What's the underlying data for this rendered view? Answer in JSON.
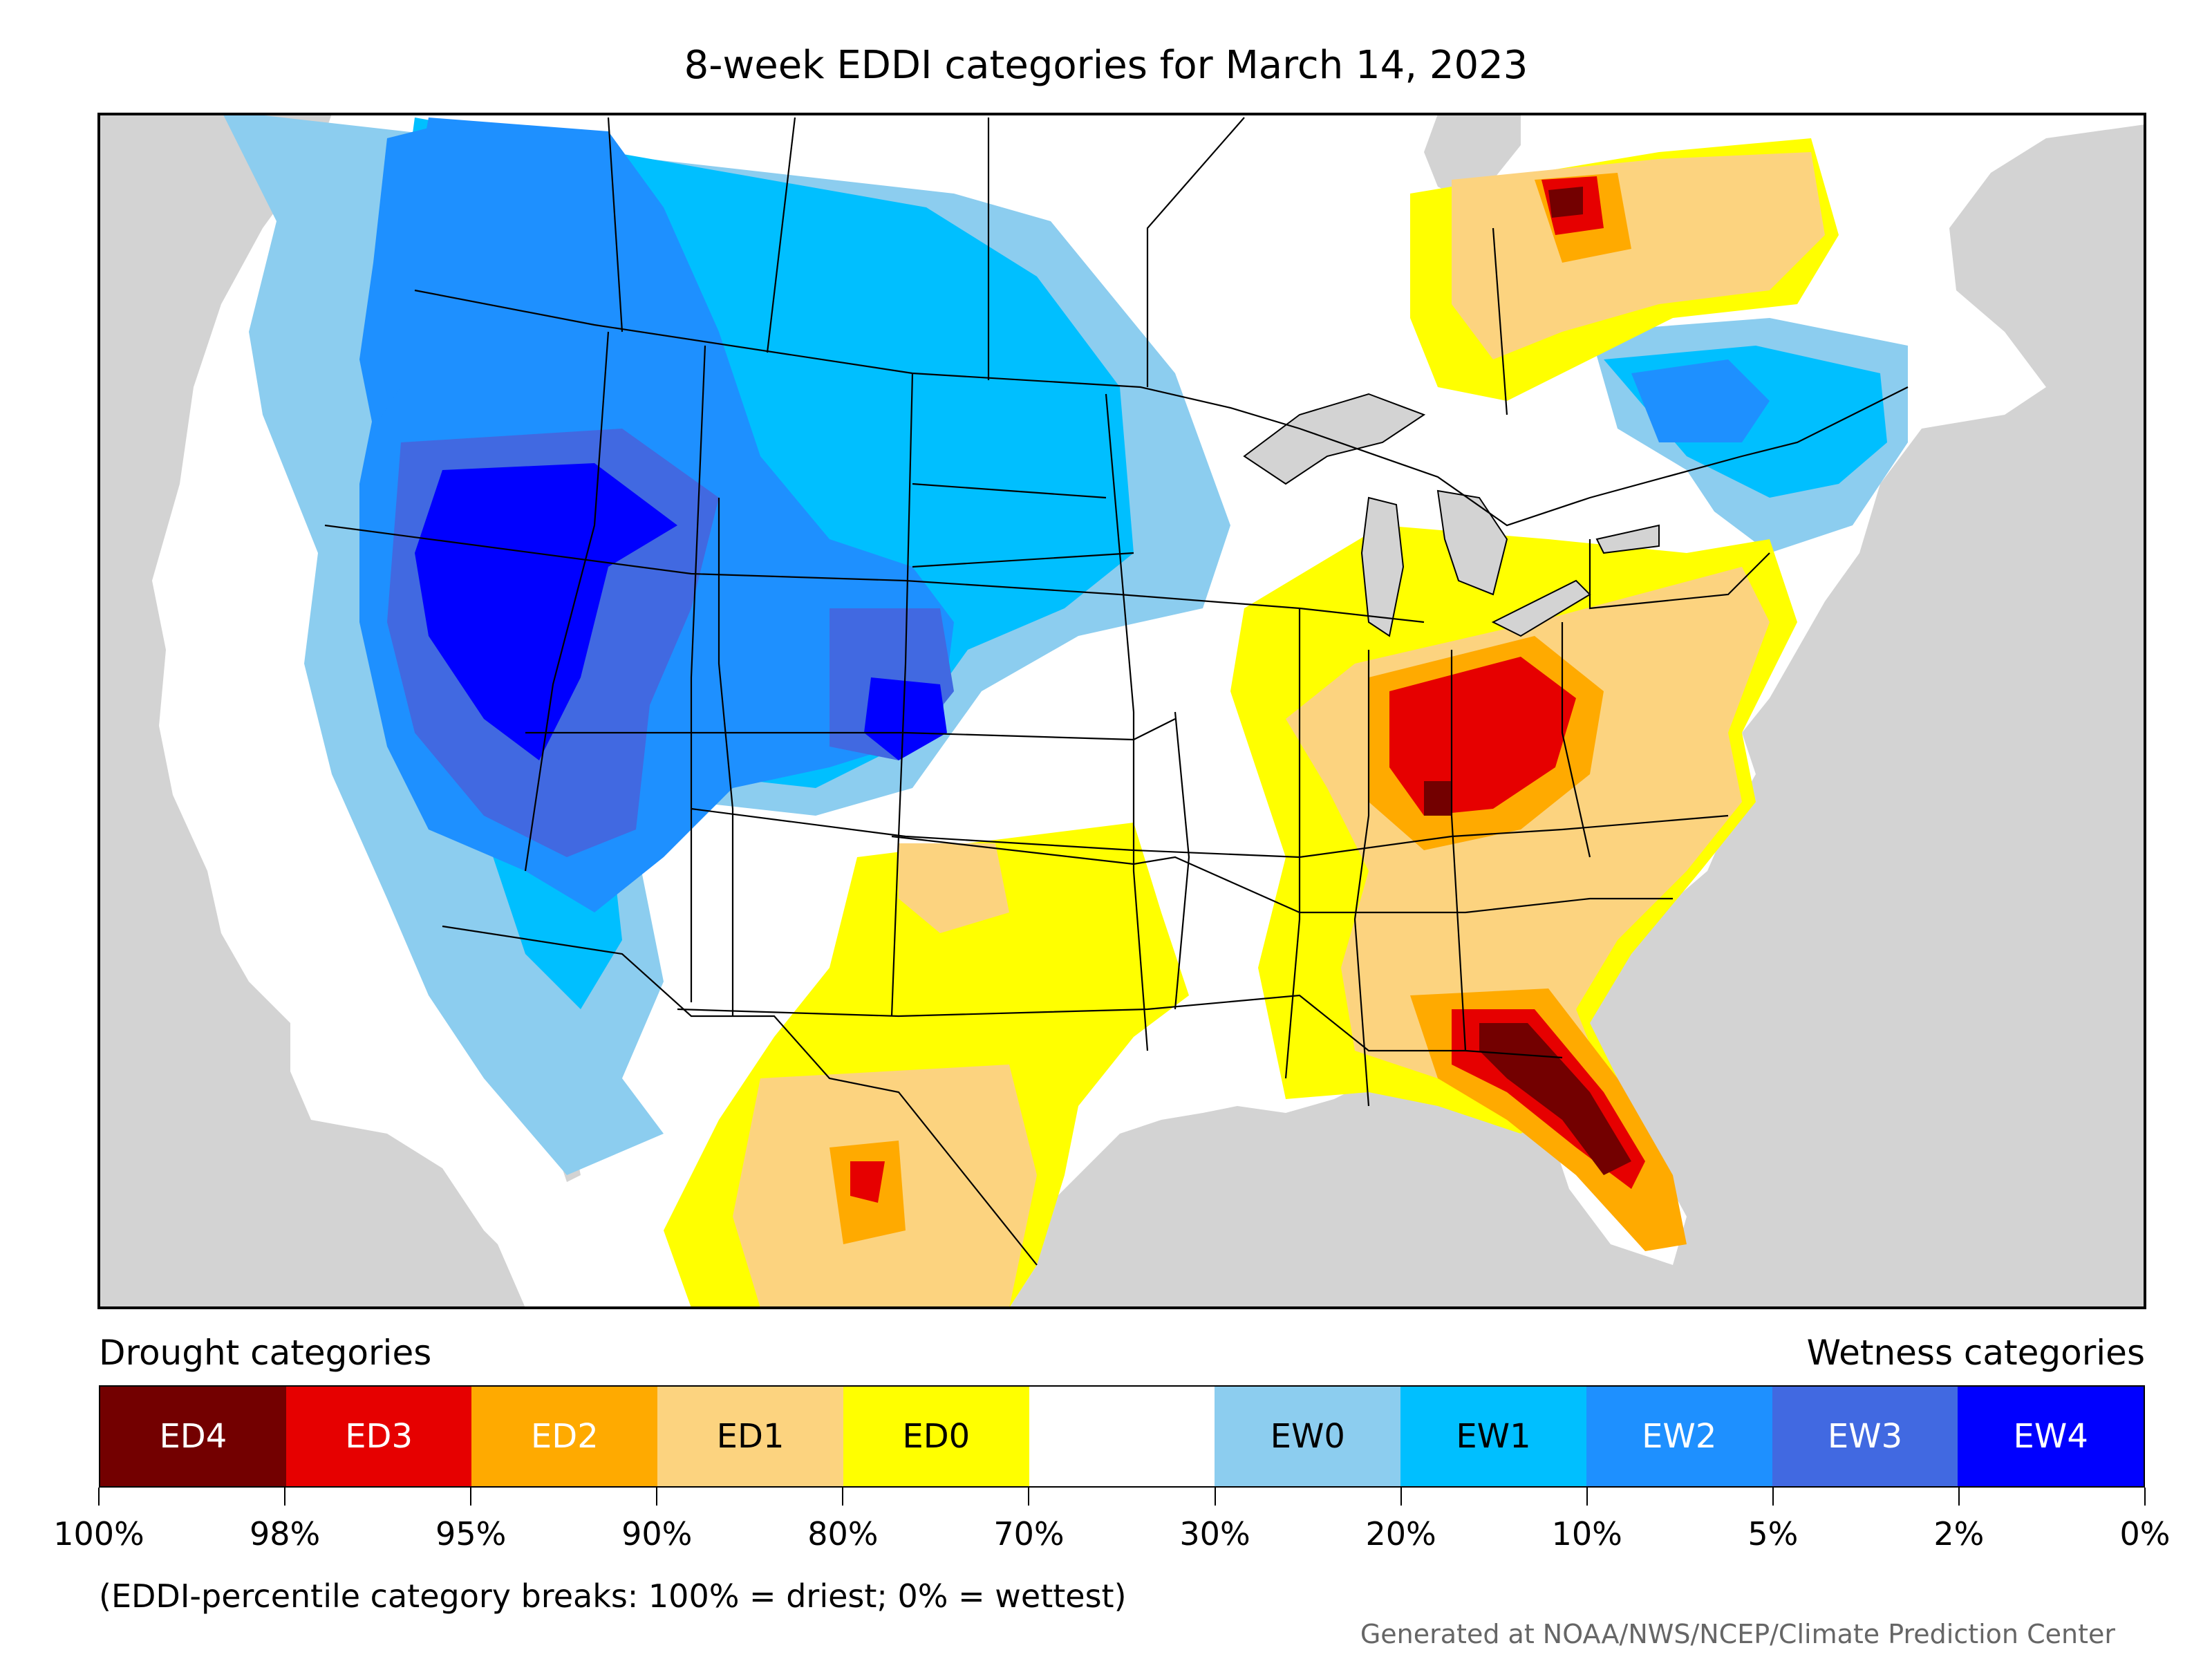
{
  "title": "8-week EDDI categories for March 14, 2023",
  "legend": {
    "drought_label": "Drought categories",
    "wetness_label": "Wetness categories",
    "categories": [
      {
        "label": "ED4",
        "color": "#730000",
        "text_color": "#ffffff"
      },
      {
        "label": "ED3",
        "color": "#e60000",
        "text_color": "#ffffff"
      },
      {
        "label": "ED2",
        "color": "#ffaa00",
        "text_color": "#ffffff"
      },
      {
        "label": "ED1",
        "color": "#fcd37f",
        "text_color": "#000000"
      },
      {
        "label": "ED0",
        "color": "#ffff00",
        "text_color": "#000000"
      },
      {
        "label": "",
        "color": "#ffffff",
        "text_color": "#000000"
      },
      {
        "label": "EW0",
        "color": "#8ccdef",
        "text_color": "#000000"
      },
      {
        "label": "EW1",
        "color": "#00bfff",
        "text_color": "#000000"
      },
      {
        "label": "EW2",
        "color": "#1e90ff",
        "text_color": "#ffffff"
      },
      {
        "label": "EW3",
        "color": "#4169e1",
        "text_color": "#ffffff"
      },
      {
        "label": "EW4",
        "color": "#0000ff",
        "text_color": "#ffffff"
      }
    ],
    "breaks": [
      "100%",
      "98%",
      "95%",
      "90%",
      "80%",
      "70%",
      "30%",
      "20%",
      "10%",
      "5%",
      "2%",
      "0%"
    ]
  },
  "note": "(EDDI-percentile category breaks: 100% = driest; 0% = wettest)",
  "credit": "Generated at NOAA/NWS/NCEP/Climate Prediction Center",
  "map": {
    "background_color": "#d3d3d3",
    "land_color": "#ffffff",
    "water_color": "#d3d3d3"
  }
}
